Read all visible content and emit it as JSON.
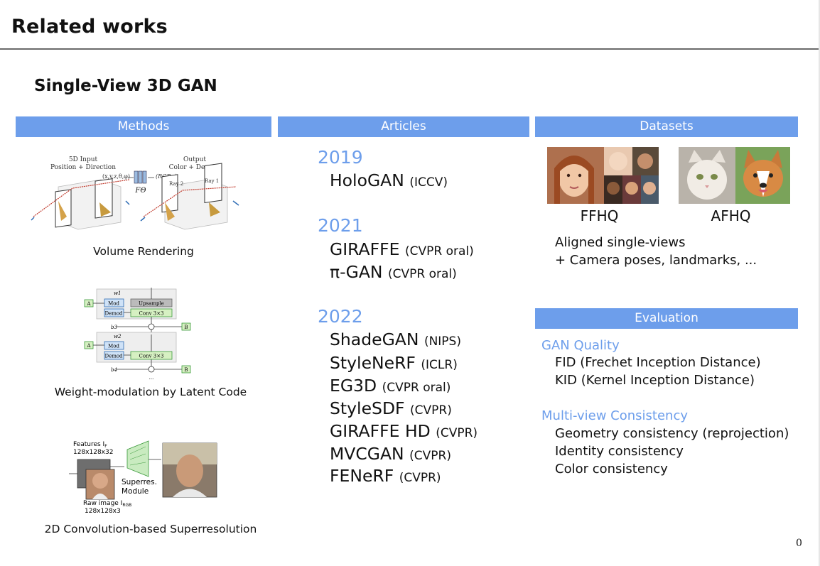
{
  "title": "Related works",
  "subtitle": "Single-View 3D GAN",
  "headers": {
    "methods": "Methods",
    "articles": "Articles",
    "datasets": "Datasets",
    "evaluation": "Evaluation"
  },
  "methods": {
    "volume_rendering": {
      "caption": "Volume Rendering",
      "input_label": "5D Input",
      "input_sub": "Position + Direction",
      "output_label": "Output",
      "output_sub": "Color + Density",
      "coords": "(x,y,z,θ,φ)",
      "rgb": "(RGBσ)",
      "f_theta": "FΘ",
      "ray1": "Ray 1",
      "ray2": "Ray 2"
    },
    "weight_mod": {
      "caption": "Weight-modulation by Latent Code",
      "w1": "w1",
      "w2": "w2",
      "a": "A",
      "b": "B",
      "mod": "Mod",
      "demod": "Demod",
      "upsample": "Upsample",
      "conv": "Conv 3×3",
      "b3": "b3",
      "b4": "b4",
      "dots": "..."
    },
    "superres": {
      "caption": "2D Convolution-based Superresolution",
      "features": "Features I",
      "features_sub": "F",
      "features_size": "128x128x32",
      "module1": "Superres.",
      "module2": "Module",
      "raw": "Raw image I",
      "raw_sub": "RGB",
      "raw_size": "128x128x3"
    }
  },
  "articles": [
    {
      "year": "2019",
      "items": [
        {
          "name": "HoloGAN",
          "venue": "(ICCV)"
        }
      ]
    },
    {
      "year": "2021",
      "items": [
        {
          "name": "GIRAFFE",
          "venue": "(CVPR oral)"
        },
        {
          "name": "π-GAN",
          "venue": "(CVPR oral)"
        }
      ]
    },
    {
      "year": "2022",
      "items": [
        {
          "name": "ShadeGAN",
          "venue": "(NIPS)"
        },
        {
          "name": "StyleNeRF",
          "venue": "(ICLR)"
        },
        {
          "name": "EG3D",
          "venue": "(CVPR oral)"
        },
        {
          "name": "StyleSDF",
          "venue": "(CVPR)"
        },
        {
          "name": "GIRAFFE HD",
          "venue": "(CVPR)"
        },
        {
          "name": "MVCGAN",
          "venue": "(CVPR)"
        },
        {
          "name": "FENeRF",
          "venue": "(CVPR)"
        }
      ]
    }
  ],
  "datasets": {
    "ffhq": "FFHQ",
    "afhq": "AFHQ",
    "line1": "Aligned single-views",
    "line2": "+ Camera poses, landmarks, ..."
  },
  "evaluation": {
    "gan_quality": {
      "heading": "GAN Quality",
      "items": [
        "FID (Frechet Inception Distance)",
        "KID (Kernel Inception Distance)"
      ]
    },
    "multiview": {
      "heading": "Multi-view Consistency",
      "items": [
        "Geometry consistency (reprojection)",
        "Identity consistency",
        "Color consistency"
      ]
    }
  },
  "page_number": "0",
  "colors": {
    "accent": "#6d9eeb",
    "rule": "#6a6a6a"
  }
}
